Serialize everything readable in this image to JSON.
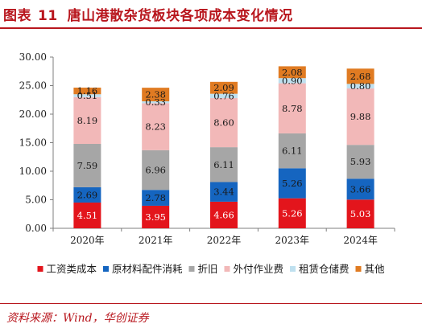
{
  "header": {
    "figure_label": "图表",
    "figure_number": "11",
    "title": "唐山港散杂货板块各项成本变化情况"
  },
  "chart_data": {
    "type": "bar",
    "stacked": true,
    "categories": [
      "2020年",
      "2021年",
      "2022年",
      "2023年",
      "2024年"
    ],
    "series": [
      {
        "name": "工资类成本",
        "color": "#e3151c",
        "values": [
          4.51,
          3.95,
          4.66,
          5.26,
          5.03
        ],
        "labels": [
          "4.51",
          "3.95",
          "4.66",
          "5.26",
          "5.03"
        ],
        "label_color": "#ffffff"
      },
      {
        "name": "原材料配件消耗",
        "color": "#1565c0",
        "values": [
          2.69,
          2.78,
          3.44,
          5.26,
          3.66
        ],
        "labels": [
          "2.69",
          "2.78",
          "3.44",
          "5.26",
          "3.66"
        ],
        "label_color": "#1a1a1a"
      },
      {
        "name": "折旧",
        "color": "#a6a6a6",
        "values": [
          7.59,
          6.96,
          6.11,
          6.11,
          5.93
        ],
        "labels": [
          "7.59",
          "6.96",
          "6.11",
          "6.11",
          "5.93"
        ],
        "label_color": "#1a1a1a"
      },
      {
        "name": "外付作业费",
        "color": "#f2b8b8",
        "values": [
          8.19,
          8.23,
          8.6,
          8.78,
          9.88
        ],
        "labels": [
          "8.19",
          "8.23",
          "8.60",
          "8.78",
          "9.88"
        ],
        "label_color": "#1a1a1a"
      },
      {
        "name": "租赁仓储费",
        "color": "#bfe0ef",
        "values": [
          0.51,
          0.33,
          0.76,
          0.9,
          0.8
        ],
        "labels": [
          "0.51",
          "0.33",
          "0.76",
          "0.90",
          "0.80"
        ],
        "label_color": "#1a1a1a"
      },
      {
        "name": "其他",
        "color": "#e07b22",
        "values": [
          1.16,
          2.38,
          2.09,
          2.08,
          2.68
        ],
        "labels": [
          "1.16",
          "2.38",
          "2.09",
          "2.08",
          "2.68"
        ],
        "label_color": "#1a1a1a"
      }
    ],
    "yticks": [
      "0.00",
      "5.00",
      "10.00",
      "15.00",
      "20.00",
      "25.00",
      "30.00"
    ],
    "ylim": [
      0,
      30
    ],
    "grid": false,
    "legend_position": "bottom"
  },
  "source": {
    "text": "资料来源：Wind，华创证券"
  }
}
